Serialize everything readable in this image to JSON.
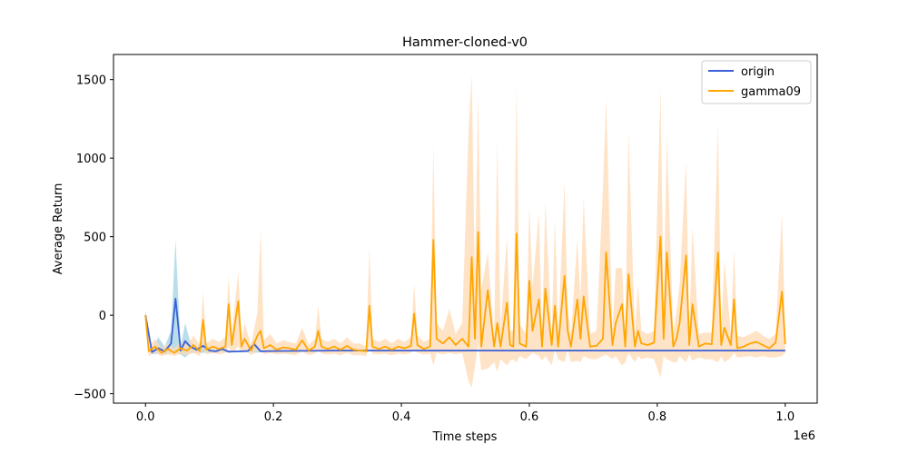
{
  "chart_data": {
    "type": "line",
    "title": "Hammer-cloned-v0",
    "xlabel": "Time steps",
    "ylabel": "Average Return",
    "x_offset_label": "1e6",
    "xlim": [
      -0.05,
      1.05
    ],
    "ylim": [
      -560,
      1660
    ],
    "xticks": [
      0.0,
      0.2,
      0.4,
      0.6,
      0.8,
      1.0
    ],
    "xtick_labels": [
      "0.0",
      "0.2",
      "0.4",
      "0.6",
      "0.8",
      "1.0"
    ],
    "yticks": [
      -500,
      0,
      500,
      1000,
      1500
    ],
    "ytick_labels": [
      "−500",
      "0",
      "500",
      "1000",
      "1500"
    ],
    "grid": false,
    "legend_position": "top-right",
    "series": [
      {
        "name": "origin",
        "color": "#3a5fd9",
        "band_color": "#add8e6",
        "x": [
          0.0,
          0.01,
          0.02,
          0.03,
          0.04,
          0.047,
          0.055,
          0.062,
          0.07,
          0.08,
          0.09,
          0.1,
          0.11,
          0.12,
          0.13,
          0.15,
          0.16,
          0.17,
          0.18,
          0.2,
          0.3,
          0.4,
          0.5,
          0.6,
          0.7,
          0.8,
          0.9,
          1.0
        ],
        "y": [
          0,
          -235,
          -210,
          -230,
          -180,
          105,
          -225,
          -165,
          -200,
          -220,
          -195,
          -225,
          -230,
          -215,
          -232,
          -230,
          -228,
          -185,
          -230,
          -228,
          -225,
          -225,
          -225,
          -225,
          -225,
          -225,
          -225,
          -225
        ],
        "lower": [
          -30,
          -250,
          -245,
          -250,
          -240,
          -240,
          -250,
          -270,
          -240,
          -240,
          -240,
          -240,
          -240,
          -235,
          -238,
          -236,
          -234,
          -240,
          -236,
          -232,
          -230,
          -230,
          -230,
          -230,
          -230,
          -230,
          -230,
          -230
        ],
        "upper": [
          30,
          -215,
          -140,
          -200,
          -100,
          480,
          -200,
          -50,
          -170,
          -200,
          -160,
          -210,
          -220,
          -200,
          -226,
          -224,
          -222,
          -150,
          -224,
          -224,
          -220,
          -220,
          -220,
          -220,
          -220,
          -220,
          -220,
          -220
        ]
      },
      {
        "name": "gamma09",
        "color": "#ffa500",
        "band_color": "#ffdab3",
        "x": [
          0.0,
          0.005,
          0.015,
          0.025,
          0.035,
          0.045,
          0.055,
          0.065,
          0.075,
          0.085,
          0.09,
          0.095,
          0.105,
          0.115,
          0.125,
          0.13,
          0.135,
          0.145,
          0.15,
          0.155,
          0.165,
          0.175,
          0.18,
          0.185,
          0.195,
          0.205,
          0.215,
          0.225,
          0.235,
          0.245,
          0.255,
          0.265,
          0.27,
          0.275,
          0.285,
          0.295,
          0.305,
          0.315,
          0.325,
          0.335,
          0.345,
          0.35,
          0.355,
          0.365,
          0.375,
          0.385,
          0.395,
          0.405,
          0.415,
          0.42,
          0.425,
          0.435,
          0.445,
          0.45,
          0.455,
          0.465,
          0.475,
          0.485,
          0.495,
          0.505,
          0.51,
          0.515,
          0.52,
          0.525,
          0.535,
          0.545,
          0.55,
          0.555,
          0.565,
          0.57,
          0.575,
          0.58,
          0.585,
          0.595,
          0.6,
          0.605,
          0.615,
          0.62,
          0.625,
          0.635,
          0.64,
          0.645,
          0.655,
          0.66,
          0.665,
          0.675,
          0.68,
          0.685,
          0.695,
          0.705,
          0.715,
          0.72,
          0.73,
          0.735,
          0.745,
          0.75,
          0.755,
          0.765,
          0.77,
          0.775,
          0.785,
          0.795,
          0.805,
          0.81,
          0.815,
          0.825,
          0.83,
          0.835,
          0.845,
          0.85,
          0.855,
          0.865,
          0.875,
          0.885,
          0.895,
          0.9,
          0.905,
          0.915,
          0.92,
          0.925,
          0.935,
          0.945,
          0.955,
          0.965,
          0.975,
          0.985,
          0.995,
          1.0
        ],
        "y": [
          0,
          -230,
          -200,
          -240,
          -215,
          -240,
          -210,
          -225,
          -190,
          -230,
          -30,
          -220,
          -200,
          -215,
          -200,
          70,
          -190,
          90,
          -200,
          -150,
          -225,
          -130,
          -100,
          -210,
          -190,
          -220,
          -205,
          -210,
          -220,
          -160,
          -225,
          -200,
          -100,
          -200,
          -215,
          -200,
          -220,
          -195,
          -220,
          -225,
          -230,
          60,
          -200,
          -215,
          -200,
          -220,
          -200,
          -210,
          -195,
          10,
          -190,
          -215,
          -200,
          480,
          -150,
          -180,
          -140,
          -190,
          -150,
          -200,
          370,
          -150,
          530,
          -200,
          160,
          -200,
          -50,
          -200,
          80,
          -190,
          -200,
          520,
          -180,
          -200,
          220,
          -100,
          100,
          -200,
          170,
          -190,
          60,
          -200,
          250,
          -100,
          -200,
          100,
          -150,
          120,
          -200,
          -195,
          -150,
          400,
          -190,
          -50,
          70,
          -200,
          260,
          -200,
          -100,
          -180,
          -190,
          -175,
          500,
          -150,
          400,
          -200,
          -150,
          -50,
          380,
          -190,
          70,
          -200,
          -180,
          -185,
          400,
          -190,
          -80,
          -190,
          100,
          -210,
          -200,
          -180,
          -170,
          -190,
          -210,
          -175,
          150,
          -185
        ],
        "lower": [
          -40,
          -260,
          -240,
          -260,
          -250,
          -260,
          -245,
          -255,
          -240,
          -260,
          -200,
          -250,
          -240,
          -250,
          -240,
          -200,
          -240,
          -200,
          -240,
          -220,
          -255,
          -225,
          -220,
          -250,
          -240,
          -250,
          -245,
          -250,
          -255,
          -230,
          -255,
          -245,
          -220,
          -245,
          -250,
          -245,
          -255,
          -240,
          -255,
          -255,
          -260,
          -200,
          -245,
          -250,
          -245,
          -255,
          -245,
          -250,
          -240,
          -220,
          -240,
          -250,
          -245,
          -320,
          -240,
          -250,
          -240,
          -250,
          -240,
          -420,
          -460,
          -330,
          -180,
          -350,
          -340,
          -300,
          -360,
          -280,
          -320,
          -290,
          -280,
          -300,
          -260,
          -280,
          -260,
          -240,
          -260,
          -290,
          -260,
          -320,
          -220,
          -280,
          -300,
          -220,
          -300,
          -290,
          -300,
          -260,
          -280,
          -280,
          -260,
          -250,
          -280,
          -260,
          -320,
          -300,
          -240,
          -300,
          -260,
          -280,
          -270,
          -280,
          -400,
          -260,
          -280,
          -300,
          -300,
          -260,
          -300,
          -250,
          -290,
          -270,
          -280,
          -280,
          -300,
          -260,
          -300,
          -270,
          -240,
          -270,
          -265,
          -260,
          -270,
          -260,
          -270,
          -270,
          -260,
          -240
        ],
        "upper": [
          40,
          -200,
          -150,
          -210,
          -180,
          -210,
          -170,
          -190,
          -130,
          -190,
          150,
          -180,
          -150,
          -170,
          -140,
          250,
          -120,
          280,
          -150,
          -50,
          -190,
          20,
          550,
          -160,
          -120,
          -180,
          -160,
          -170,
          -180,
          -80,
          -190,
          -150,
          60,
          -150,
          -170,
          -150,
          -180,
          -140,
          -180,
          -180,
          -200,
          430,
          -150,
          -170,
          -150,
          -180,
          -150,
          -170,
          -140,
          200,
          -130,
          -170,
          -150,
          1080,
          -50,
          -100,
          40,
          -120,
          -50,
          1170,
          1530,
          200,
          1400,
          160,
          400,
          -140,
          1100,
          -80,
          500,
          -100,
          -100,
          1460,
          -60,
          -120,
          700,
          180,
          650,
          -120,
          720,
          -130,
          620,
          -120,
          850,
          50,
          -120,
          480,
          100,
          750,
          -120,
          -100,
          800,
          1380,
          -100,
          300,
          300,
          -120,
          1170,
          -120,
          200,
          -100,
          -120,
          -100,
          1450,
          60,
          1140,
          -120,
          20,
          200,
          980,
          -120,
          560,
          -120,
          -110,
          -110,
          1220,
          -120,
          350,
          -120,
          420,
          -130,
          -140,
          -120,
          -100,
          -130,
          -150,
          -120,
          650,
          -120
        ]
      }
    ]
  }
}
